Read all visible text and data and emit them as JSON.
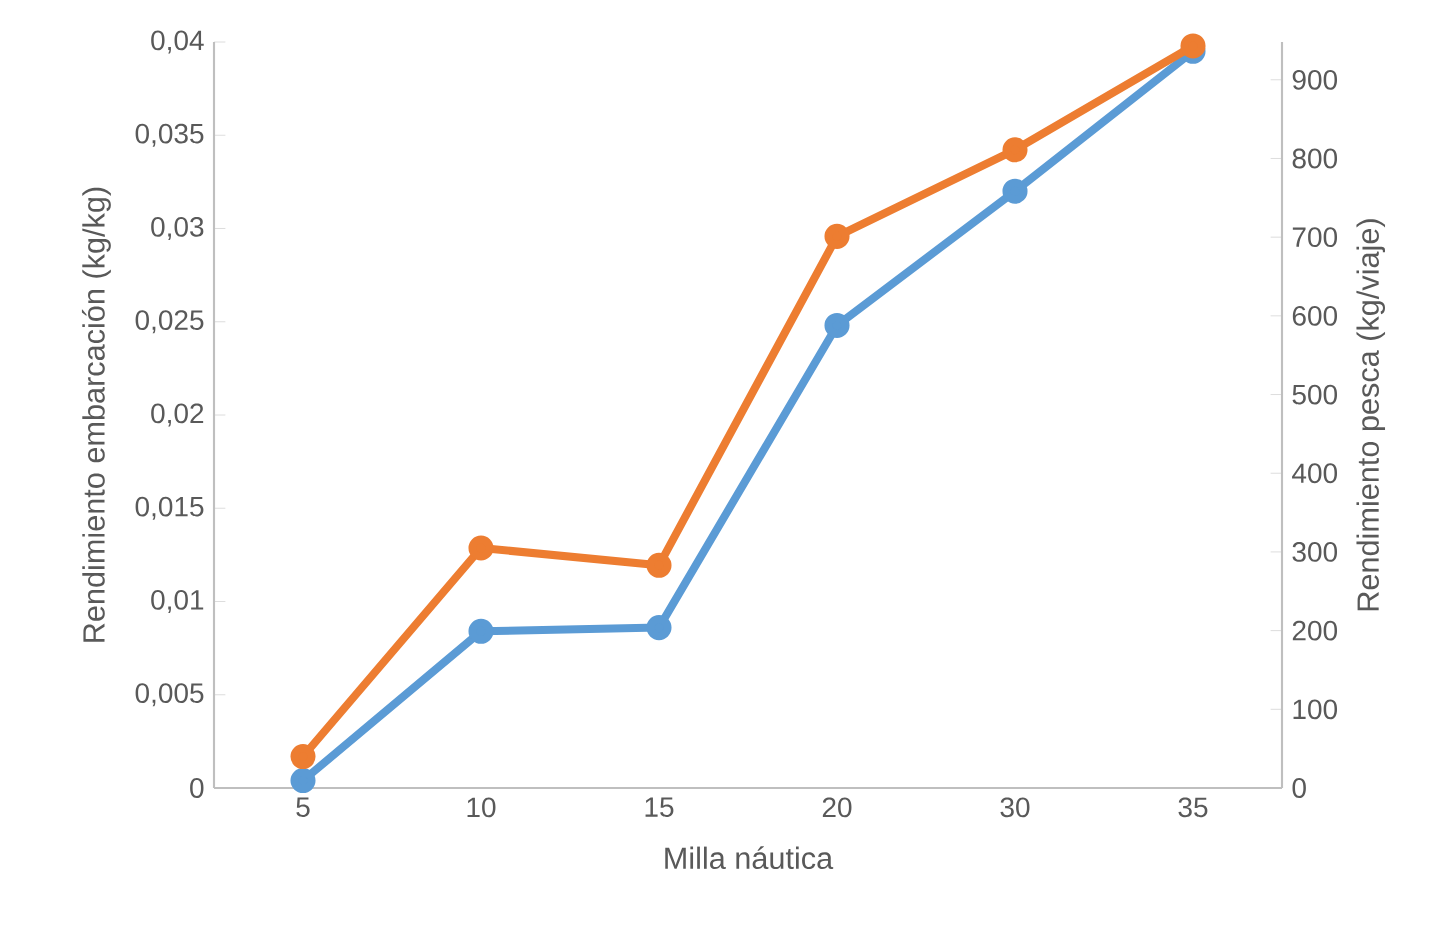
{
  "chart_data": {
    "type": "line",
    "categories": [
      "5",
      "10",
      "15",
      "20",
      "30",
      "35"
    ],
    "xlabel": "Milla náutica",
    "ylabel": "Rendimiento embarcación (kg/kg)",
    "y2label": "Rendimiento pesca (kg/viaje)",
    "ylim": [
      0,
      0.04
    ],
    "yticks": [
      0,
      {
        "value": 0.005,
        "label": "0,005"
      },
      {
        "value": 0.01,
        "label": "0,01"
      },
      {
        "value": 0.015,
        "label": "0,015"
      },
      {
        "value": 0.02,
        "label": "0,02"
      },
      {
        "value": 0.025,
        "label": "0,025"
      },
      {
        "value": 0.03,
        "label": "0,03"
      },
      {
        "value": 0.035,
        "label": "0,035"
      },
      {
        "value": 0.04,
        "label": "0,04"
      }
    ],
    "y2lim": [
      0,
      948
    ],
    "y2ticks": [
      0,
      100,
      200,
      300,
      400,
      500,
      600,
      700,
      800,
      900
    ],
    "marker": "circle",
    "series": [
      {
        "color": "#5b9bd5",
        "axis": "y",
        "values": [
          0.0004,
          0.0084,
          0.0086,
          0.0248,
          0.032,
          0.0395
        ]
      },
      {
        "color": "#ed7d31",
        "axis": "y2",
        "values": [
          40,
          305,
          283,
          701,
          811,
          943
        ]
      }
    ]
  }
}
